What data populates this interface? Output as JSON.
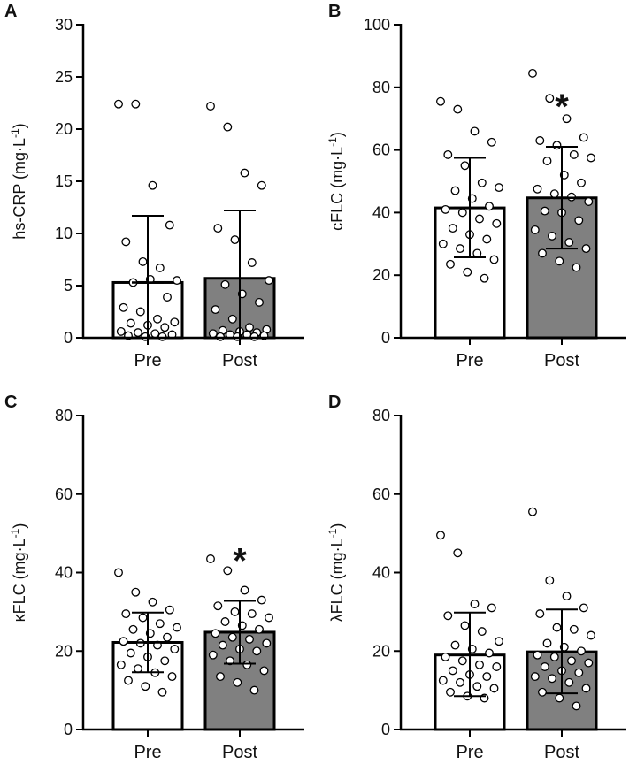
{
  "colors": {
    "pre_fill": "#ffffff",
    "post_fill": "#808080",
    "stroke": "#000000",
    "point_fill": "#ffffff"
  },
  "chart_data": [
    {
      "panel": "A",
      "type": "bar",
      "ylabel_main": "hs-CRP (mg·L",
      "ylabel_sup": "-1",
      "ylabel_end": ")",
      "ylim": [
        0,
        30
      ],
      "yticks": [
        "0",
        "5",
        "10",
        "15",
        "20",
        "25",
        "30"
      ],
      "categories": [
        "Pre",
        "Post"
      ],
      "means": [
        5.3,
        5.7
      ],
      "sd_upper": [
        11.7,
        12.2
      ],
      "sd_lower": [
        0,
        0
      ],
      "significance": [
        "",
        ""
      ],
      "points": [
        [
          22.4,
          22.4,
          14.6,
          10.8,
          9.2,
          7.3,
          6.7,
          5.5,
          5.3,
          5.6,
          3.9,
          2.9,
          2.5,
          1.8,
          1.5,
          1.4,
          1.2,
          1.0,
          0.6,
          0.5,
          0.4,
          0.3,
          0.2,
          0.1,
          0.1
        ],
        [
          22.2,
          20.2,
          15.8,
          14.6,
          10.5,
          9.4,
          7.2,
          5.5,
          5.1,
          4.2,
          3.4,
          2.7,
          1.8,
          1.0,
          0.8,
          0.7,
          0.6,
          0.5,
          0.4,
          0.3,
          0.3,
          0.2,
          0.1,
          0.1,
          0.1
        ]
      ]
    },
    {
      "panel": "B",
      "type": "bar",
      "ylabel_main": "cFLC (mg·L",
      "ylabel_sup": "-1",
      "ylabel_end": ")",
      "ylim": [
        0,
        100
      ],
      "yticks": [
        "0",
        "20",
        "40",
        "60",
        "80",
        "100"
      ],
      "categories": [
        "Pre",
        "Post"
      ],
      "means": [
        41.5,
        44.7
      ],
      "sd_upper": [
        57.5,
        61.0
      ],
      "sd_lower": [
        25.7,
        28.5
      ],
      "significance": [
        "",
        "*"
      ],
      "points": [
        [
          75.5,
          73.0,
          66.0,
          62.5,
          58.5,
          55.0,
          49.5,
          48.0,
          47.0,
          44.5,
          42.0,
          41.0,
          40.0,
          38.0,
          36.5,
          35.0,
          33.0,
          31.5,
          30.0,
          28.5,
          27.0,
          25.0,
          23.5,
          21.0,
          19.0
        ],
        [
          84.5,
          76.5,
          70.0,
          64.0,
          63.0,
          61.5,
          58.5,
          57.5,
          56.5,
          52.0,
          49.5,
          47.5,
          46.0,
          45.0,
          43.5,
          40.5,
          40.0,
          37.5,
          34.5,
          32.5,
          30.5,
          28.5,
          27.0,
          24.5,
          22.5
        ]
      ]
    },
    {
      "panel": "C",
      "type": "bar",
      "ylabel_main": "κFLC (mg·L",
      "ylabel_sup": "-1",
      "ylabel_end": ")",
      "ylim": [
        0,
        80
      ],
      "yticks": [
        "0",
        "20",
        "40",
        "60",
        "80"
      ],
      "categories": [
        "Pre",
        "Post"
      ],
      "means": [
        22.2,
        24.8
      ],
      "sd_upper": [
        29.8,
        32.8
      ],
      "sd_lower": [
        14.6,
        16.8
      ],
      "significance": [
        "",
        "*"
      ],
      "points": [
        [
          40.0,
          35.0,
          32.5,
          30.5,
          29.5,
          28.5,
          27.0,
          26.0,
          25.5,
          24.5,
          23.5,
          22.5,
          22.0,
          21.5,
          20.5,
          19.5,
          18.5,
          17.5,
          16.5,
          15.5,
          14.5,
          13.5,
          12.5,
          11.0,
          9.5
        ],
        [
          43.5,
          40.5,
          35.5,
          33.0,
          31.5,
          30.0,
          29.5,
          28.5,
          27.5,
          26.5,
          25.5,
          24.5,
          23.5,
          23.0,
          22.0,
          21.5,
          20.5,
          20.0,
          19.0,
          17.5,
          16.5,
          15.0,
          13.5,
          12.0,
          10.0
        ]
      ]
    },
    {
      "panel": "D",
      "type": "bar",
      "ylabel_main": "λFLC (mg·L",
      "ylabel_sup": "-1",
      "ylabel_end": ")",
      "ylim": [
        0,
        80
      ],
      "yticks": [
        "0",
        "20",
        "40",
        "60",
        "80"
      ],
      "categories": [
        "Pre",
        "Post"
      ],
      "means": [
        19.0,
        19.8
      ],
      "sd_upper": [
        29.8,
        30.6
      ],
      "sd_lower": [
        8.5,
        9.2
      ],
      "significance": [
        "",
        ""
      ],
      "points": [
        [
          49.5,
          45.0,
          32.0,
          31.0,
          29.0,
          26.5,
          25.0,
          22.5,
          21.5,
          20.5,
          19.5,
          18.5,
          17.5,
          16.5,
          16.0,
          15.0,
          14.0,
          13.5,
          12.5,
          12.0,
          11.0,
          10.5,
          9.5,
          8.5,
          8.0
        ],
        [
          55.5,
          38.0,
          34.0,
          31.0,
          29.5,
          26.0,
          25.5,
          24.0,
          22.0,
          21.0,
          20.0,
          19.0,
          18.5,
          17.5,
          17.0,
          16.0,
          15.0,
          14.5,
          13.5,
          13.0,
          12.0,
          10.5,
          9.5,
          8.0,
          6.0
        ]
      ]
    }
  ]
}
